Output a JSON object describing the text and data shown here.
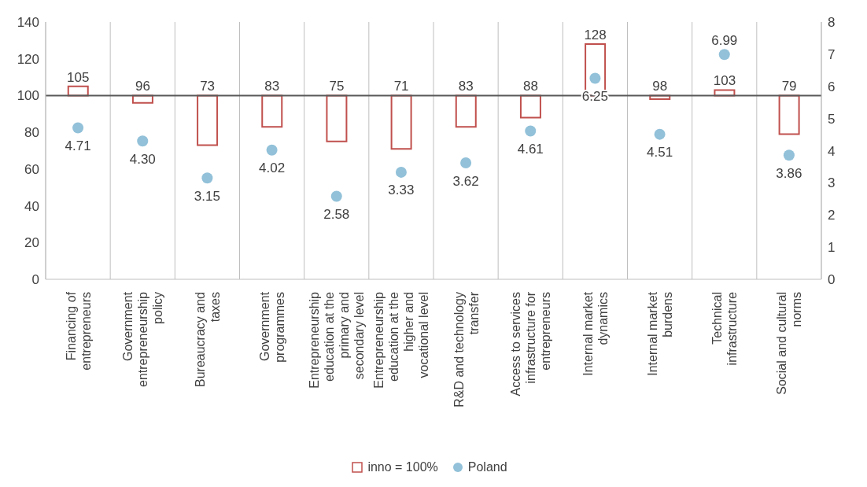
{
  "chart_data": {
    "type": "bar",
    "categories": [
      "Financing of entrepreneurs",
      "Government entrepreneurship policy",
      "Bureaucracy and taxes",
      "Government programmes",
      "Entrepreneurship education at the primary and secondary level",
      "Entrepreneurship education at the higher and vocational level",
      "R&D and technology transfer",
      "Access to services infrastructure for entrepreneurs",
      "Internal market dynamics",
      "Internal market burdens",
      "Technical infrastructure",
      "Social and cultural norms"
    ],
    "series": [
      {
        "name": "inno = 100%",
        "color": "#c0504d",
        "base": [
          100,
          100,
          100,
          100,
          100,
          100,
          100,
          100,
          100,
          100,
          100,
          100
        ],
        "values": [
          5,
          -4,
          -27,
          -17,
          -25,
          -29,
          -17,
          -12,
          28,
          -2,
          3,
          -21
        ],
        "value_labels": [
          "105",
          "96",
          "73",
          "83",
          "75",
          "71",
          "83",
          "88",
          "128",
          "98",
          "103",
          "79"
        ]
      },
      {
        "name": "Poland",
        "type": "scatter",
        "axis": "y2",
        "color": "#92c1d9",
        "values": [
          4.71,
          4.3,
          3.15,
          4.02,
          2.58,
          3.33,
          3.62,
          4.61,
          6.25,
          4.51,
          6.99,
          3.86
        ],
        "value_labels": [
          "4.71",
          "4.30",
          "3.15",
          "4.02",
          "2.58",
          "3.33",
          "3.62",
          "4.61",
          "6.25",
          "4.51",
          "6.99",
          "3.86"
        ]
      }
    ],
    "ylim": [
      0,
      140
    ],
    "yticks": [
      0,
      20,
      40,
      60,
      80,
      100,
      120,
      140
    ],
    "y2lim": [
      0,
      8
    ],
    "y2ticks": [
      0,
      1,
      2,
      3,
      4,
      5,
      6,
      7,
      8
    ],
    "ref_lines": [
      {
        "axis": "y",
        "value": 100,
        "color": "#595959"
      }
    ],
    "grid": "x",
    "legend": "bottom",
    "marker": "circle"
  }
}
